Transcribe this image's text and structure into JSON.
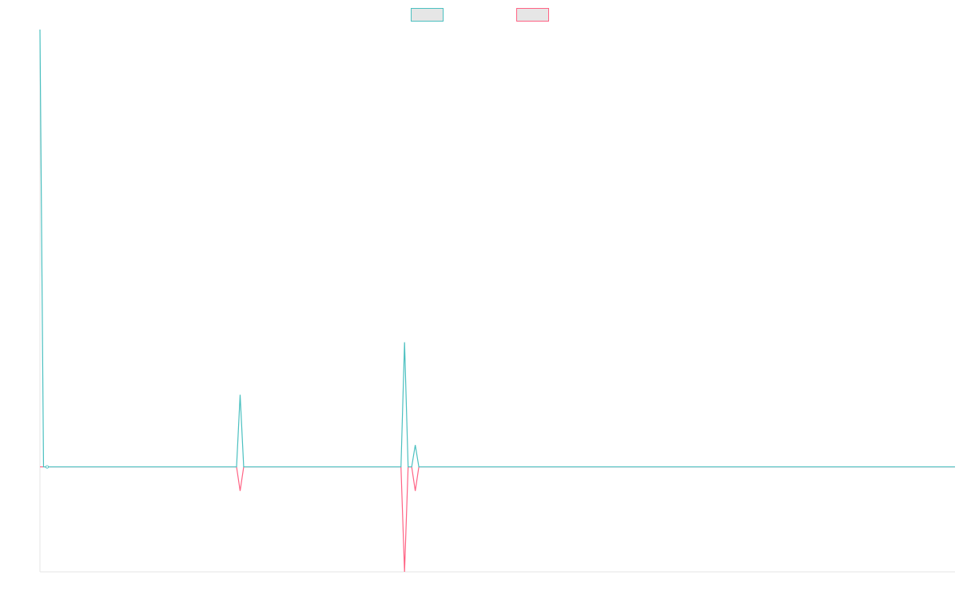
{
  "chart_data": {
    "type": "line",
    "title": "",
    "xlabel": "",
    "ylabel": "",
    "grid": false,
    "legend_position": "top-center",
    "legend_fill": "#e6e6e6",
    "x": [
      0,
      1,
      2,
      55,
      56,
      57,
      58,
      100,
      101,
      102,
      103,
      104,
      105,
      106,
      107,
      256
    ],
    "xlim": [
      0,
      256
    ],
    "ylim": [
      -0.24,
      1.0
    ],
    "series": [
      {
        "color": "#4bc0c0",
        "values": [
          1.0,
          0.0,
          0.0,
          0.0,
          0.165,
          0.0,
          0.0,
          0.0,
          0.0,
          0.285,
          0.0,
          0.0,
          0.05,
          0.0,
          0.0,
          0.0
        ]
      },
      {
        "color": "#ff6384",
        "values": [
          0.0,
          0.0,
          0.0,
          0.0,
          -0.055,
          0.0,
          0.0,
          0.0,
          0.0,
          -0.24,
          0.0,
          0.0,
          -0.055,
          0.0,
          0.0,
          0.0
        ]
      }
    ]
  }
}
